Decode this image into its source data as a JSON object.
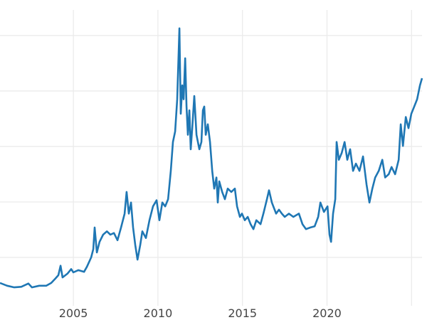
{
  "chart_data": {
    "type": "line",
    "title": "",
    "xlabel": "",
    "ylabel": "",
    "xlim": [
      2000.66,
      2025.62
    ],
    "ylim": [
      0,
      56.4
    ],
    "x_ticks": [
      2005,
      2010,
      2015,
      2020,
      2025
    ],
    "x_tick_labels": [
      "2005",
      "2010",
      "2015",
      "2020",
      ""
    ],
    "y_gridlines": [
      10,
      20,
      30,
      40,
      50
    ],
    "y_tick_labels_shown": false,
    "grid": true,
    "line_color": "#1f77b4",
    "series": [
      {
        "x": [
          2000.66,
          2001.08,
          2001.5,
          2001.92,
          2002.34,
          2002.55,
          2002.98,
          2003.4,
          2003.69,
          2003.94,
          2004.11,
          2004.24,
          2004.36,
          2004.66,
          2004.87,
          2005.0,
          2005.29,
          2005.63,
          2005.8,
          2006.05,
          2006.18,
          2006.26,
          2006.39,
          2006.55,
          2006.76,
          2006.98,
          2007.19,
          2007.4,
          2007.61,
          2007.82,
          2008.03,
          2008.15,
          2008.28,
          2008.41,
          2008.53,
          2008.66,
          2008.79,
          2008.95,
          2009.08,
          2009.29,
          2009.5,
          2009.71,
          2009.92,
          2010.09,
          2010.26,
          2010.43,
          2010.6,
          2010.76,
          2010.89,
          2011.02,
          2011.14,
          2011.27,
          2011.35,
          2011.44,
          2011.52,
          2011.61,
          2011.69,
          2011.77,
          2011.86,
          2011.94,
          2012.03,
          2012.15,
          2012.28,
          2012.45,
          2012.57,
          2012.66,
          2012.74,
          2012.83,
          2012.95,
          2013.08,
          2013.21,
          2013.33,
          2013.46,
          2013.54,
          2013.63,
          2013.8,
          2013.96,
          2014.13,
          2014.34,
          2014.55,
          2014.68,
          2014.85,
          2014.97,
          2015.14,
          2015.31,
          2015.48,
          2015.65,
          2015.82,
          2016.07,
          2016.24,
          2016.45,
          2016.57,
          2016.74,
          2016.99,
          2017.16,
          2017.33,
          2017.5,
          2017.75,
          2018.01,
          2018.34,
          2018.55,
          2018.76,
          2019.02,
          2019.27,
          2019.48,
          2019.61,
          2019.82,
          2020.03,
          2020.15,
          2020.24,
          2020.36,
          2020.49,
          2020.57,
          2020.7,
          2020.87,
          2021.04,
          2021.2,
          2021.37,
          2021.54,
          2021.71,
          2021.92,
          2022.13,
          2022.34,
          2022.51,
          2022.68,
          2022.85,
          2023.06,
          2023.27,
          2023.44,
          2023.65,
          2023.82,
          2024.03,
          2024.24,
          2024.36,
          2024.49,
          2024.66,
          2024.82,
          2024.99,
          2025.16,
          2025.33,
          2025.5,
          2025.62
        ],
        "y": [
          5.4,
          4.9,
          4.6,
          4.7,
          5.3,
          4.6,
          4.9,
          4.9,
          5.4,
          6.2,
          6.8,
          8.5,
          6.4,
          7.1,
          7.9,
          7.3,
          7.7,
          7.4,
          8.3,
          10.0,
          11.5,
          15.4,
          10.9,
          12.8,
          14.1,
          14.7,
          14.1,
          14.4,
          13.1,
          15.4,
          17.9,
          21.8,
          17.9,
          19.9,
          15.4,
          12.2,
          9.6,
          12.2,
          14.7,
          13.5,
          16.7,
          19.2,
          20.3,
          16.7,
          19.9,
          19.2,
          20.5,
          25.6,
          30.8,
          32.7,
          38.5,
          51.3,
          35.9,
          41.0,
          38.5,
          45.9,
          37.2,
          32.1,
          36.5,
          29.5,
          33.3,
          39.1,
          32.1,
          29.5,
          30.8,
          36.5,
          37.2,
          32.1,
          34.0,
          30.8,
          25.6,
          22.4,
          24.4,
          19.9,
          23.7,
          21.8,
          20.5,
          22.4,
          21.8,
          22.4,
          19.2,
          17.3,
          17.9,
          16.7,
          17.3,
          16.0,
          15.1,
          16.7,
          16.0,
          17.9,
          20.5,
          22.1,
          19.9,
          17.9,
          18.6,
          17.9,
          17.3,
          17.9,
          17.3,
          17.9,
          16.0,
          15.1,
          15.4,
          15.6,
          17.3,
          19.9,
          18.2,
          19.2,
          14.1,
          12.8,
          17.9,
          20.5,
          30.8,
          27.6,
          28.8,
          30.8,
          27.6,
          29.5,
          25.6,
          26.9,
          25.6,
          28.2,
          23.1,
          19.9,
          22.4,
          24.4,
          25.6,
          27.6,
          24.4,
          25.0,
          26.3,
          25.0,
          27.6,
          34.0,
          30.1,
          35.3,
          33.3,
          35.9,
          37.2,
          38.5,
          41.0,
          42.3
        ]
      }
    ]
  }
}
